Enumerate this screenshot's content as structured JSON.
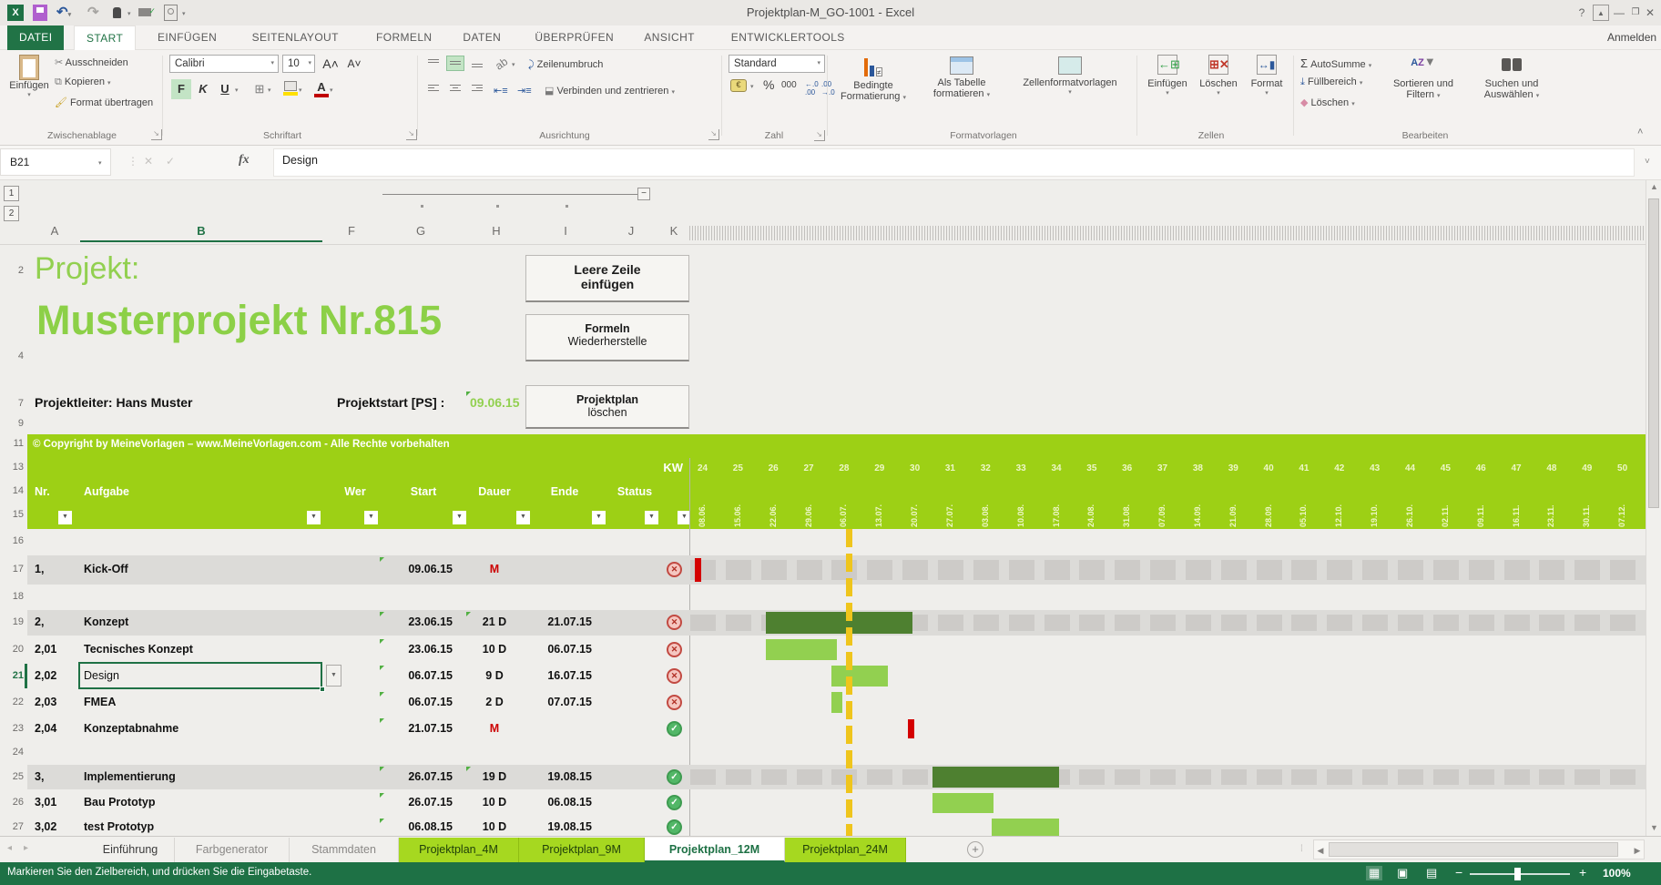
{
  "window": {
    "title": "Projektplan-M_GO-1001 - Excel",
    "signin": "Anmelden",
    "help": "?",
    "qat_icons": [
      "excel-logo",
      "save",
      "undo",
      "redo",
      "touch-mode",
      "print-preview",
      "preview-zoom"
    ]
  },
  "ribbon": {
    "tabs": [
      {
        "label": "DATEI",
        "style": "file"
      },
      {
        "label": "START",
        "style": "active"
      },
      {
        "label": "EINFÜGEN",
        "style": "plain"
      },
      {
        "label": "SEITENLAYOUT",
        "style": "plain"
      },
      {
        "label": "FORMELN",
        "style": "plain"
      },
      {
        "label": "DATEN",
        "style": "plain"
      },
      {
        "label": "ÜBERPRÜFEN",
        "style": "plain"
      },
      {
        "label": "ANSICHT",
        "style": "plain"
      },
      {
        "label": "ENTWICKLERTOOLS",
        "style": "plain"
      }
    ],
    "clipboard": {
      "label": "Zwischenablage",
      "paste": "Einfügen",
      "cut": "Ausschneiden",
      "copy": "Kopieren",
      "painter": "Format übertragen"
    },
    "font": {
      "label": "Schriftart",
      "family": "Calibri",
      "size": "10",
      "bold": "F",
      "italic": "K",
      "underline": "U"
    },
    "alignment": {
      "label": "Ausrichtung",
      "wrap": "Zeilenumbruch",
      "merge": "Verbinden und zentrieren"
    },
    "number": {
      "label": "Zahl",
      "format": "Standard",
      "percent": "%",
      "thousands": "000"
    },
    "styles": {
      "label": "Formatvorlagen",
      "cond1": "Bedingte",
      "cond2": "Formatierung",
      "tbl1": "Als Tabelle",
      "tbl2": "formatieren",
      "cellstyles": "Zellenformatvorlagen"
    },
    "cells": {
      "label": "Zellen",
      "insert": "Einfügen",
      "del": "Löschen",
      "format": "Format"
    },
    "editing": {
      "label": "Bearbeiten",
      "autosum": "AutoSumme",
      "fill": "Füllbereich",
      "clear": "Löschen",
      "sort1": "Sortieren und",
      "sort2": "Filtern",
      "find1": "Suchen und",
      "find2": "Auswählen"
    }
  },
  "formula_bar": {
    "cell_ref": "B21",
    "fx": "fx",
    "value": "Design"
  },
  "sheet": {
    "column_letters": [
      "A",
      "B",
      "F",
      "G",
      "H",
      "I",
      "J",
      "K"
    ],
    "selected_column": "B",
    "selected_row": "21",
    "upper_row_numbers": [
      "2",
      "4",
      "7",
      "9",
      "11",
      "13",
      "14",
      "15"
    ],
    "project_label": "Projekt:",
    "project_name": "Musterprojekt Nr.815",
    "leader": "Projektleiter: Hans Muster",
    "start_label": "Projektstart [PS] :",
    "start_value": "09.06.15",
    "macro_buttons": [
      {
        "line1": "Leere Zeile",
        "line2": "einfügen"
      },
      {
        "line1": "Formeln",
        "line2": "Wiederherstelle"
      },
      {
        "line1": "Projektplan",
        "line2": "löschen"
      }
    ],
    "copyright": "© Copyright by MeineVorlagen – www.MeineVorlagen.com - Alle Rechte vorbehalten",
    "table": {
      "kw_label": "KW",
      "headers": [
        "Nr.",
        "Aufgabe",
        "Wer",
        "Start",
        "Dauer",
        "Ende",
        "Status"
      ],
      "weeks": [
        {
          "kw": "24",
          "date": "08.06."
        },
        {
          "kw": "25",
          "date": "15.06."
        },
        {
          "kw": "26",
          "date": "22.06."
        },
        {
          "kw": "27",
          "date": "29.06."
        },
        {
          "kw": "28",
          "date": "06.07."
        },
        {
          "kw": "29",
          "date": "13.07."
        },
        {
          "kw": "30",
          "date": "20.07."
        },
        {
          "kw": "31",
          "date": "27.07."
        },
        {
          "kw": "32",
          "date": "03.08."
        },
        {
          "kw": "33",
          "date": "10.08."
        },
        {
          "kw": "34",
          "date": "17.08."
        },
        {
          "kw": "35",
          "date": "24.08."
        },
        {
          "kw": "36",
          "date": "31.08."
        },
        {
          "kw": "37",
          "date": "07.09."
        },
        {
          "kw": "38",
          "date": "14.09."
        },
        {
          "kw": "39",
          "date": "21.09."
        },
        {
          "kw": "40",
          "date": "28.09."
        },
        {
          "kw": "41",
          "date": "05.10."
        },
        {
          "kw": "42",
          "date": "12.10."
        },
        {
          "kw": "43",
          "date": "19.10."
        },
        {
          "kw": "44",
          "date": "26.10."
        },
        {
          "kw": "45",
          "date": "02.11."
        },
        {
          "kw": "46",
          "date": "09.11."
        },
        {
          "kw": "47",
          "date": "16.11."
        },
        {
          "kw": "48",
          "date": "23.11."
        },
        {
          "kw": "49",
          "date": "30.11."
        },
        {
          "kw": "50",
          "date": "07.12."
        }
      ],
      "today_week": 28.5,
      "rows": [
        {
          "row": "16",
          "blank": true
        },
        {
          "row": "17",
          "nr": "1,",
          "name": "Kick-Off",
          "start": "09.06.15",
          "dauer": "M",
          "milestone": true,
          "ende": "",
          "status": "red",
          "summary": true,
          "gantt": {
            "milestone_week": 24.15
          }
        },
        {
          "row": "18",
          "blank": true
        },
        {
          "row": "19",
          "nr": "2,",
          "name": "Konzept",
          "start": "23.06.15",
          "dauer": "21 D",
          "ende": "21.07.15",
          "status": "red",
          "summary": true,
          "comment_dauer": true,
          "gantt": {
            "from_week": 26.15,
            "to_week": 30.3,
            "dark": true
          }
        },
        {
          "row": "20",
          "nr": "2,01",
          "name": "Tecnisches Konzept",
          "start": "23.06.15",
          "dauer": "10 D",
          "ende": "06.07.15",
          "status": "red",
          "gantt": {
            "from_week": 26.15,
            "to_week": 28.16
          }
        },
        {
          "row": "21",
          "nr": "2,02",
          "name": "Design",
          "start": "06.07.15",
          "dauer": "9 D",
          "ende": "16.07.15",
          "status": "red",
          "selected": true,
          "gantt": {
            "from_week": 28.02,
            "to_week": 29.6
          }
        },
        {
          "row": "22",
          "nr": "2,03",
          "name": "FMEA",
          "start": "06.07.15",
          "dauer": "2 D",
          "ende": "07.07.15",
          "status": "red",
          "gantt": {
            "from_week": 28.02,
            "to_week": 28.32
          }
        },
        {
          "row": "23",
          "nr": "2,04",
          "name": "Konzeptabnahme",
          "start": "21.07.15",
          "dauer": "M",
          "milestone": true,
          "ende": "",
          "status": "green",
          "gantt": {
            "milestone_week": 30.18
          }
        },
        {
          "row": "24",
          "blank": true
        },
        {
          "row": "25",
          "nr": "3,",
          "name": "Implementierung",
          "start": "26.07.15",
          "dauer": "19 D",
          "ende": "19.08.15",
          "status": "green",
          "summary": true,
          "comment_dauer": true,
          "gantt": {
            "from_week": 30.88,
            "to_week": 34.45,
            "dark": true
          }
        },
        {
          "row": "26",
          "nr": "3,01",
          "name": "Bau Prototyp",
          "start": "26.07.15",
          "dauer": "10 D",
          "ende": "06.08.15",
          "status": "green",
          "gantt": {
            "from_week": 30.88,
            "to_week": 32.6
          }
        },
        {
          "row": "27",
          "nr": "3,02",
          "name": "test Prototyp",
          "start": "06.08.15",
          "dauer": "10 D",
          "ende": "19.08.15",
          "status": "green",
          "gantt": {
            "from_week": 32.55,
            "to_week": 34.45
          }
        }
      ]
    }
  },
  "sheet_tabs": [
    {
      "label": "Einführung",
      "style": "plain"
    },
    {
      "label": "Farbgenerator",
      "style": "dim"
    },
    {
      "label": "Stammdaten",
      "style": "dim"
    },
    {
      "label": "Projektplan_4M",
      "style": "green"
    },
    {
      "label": "Projektplan_9M",
      "style": "green"
    },
    {
      "label": "Projektplan_12M",
      "style": "active"
    },
    {
      "label": "Projektplan_24M",
      "style": "green"
    }
  ],
  "status_bar": {
    "message": "Markieren Sie den Zielbereich, und drücken Sie die Eingabetaste.",
    "zoom": "100%"
  },
  "colors": {
    "accent_green": "#217346",
    "band_green": "#9DD015",
    "light_green_bar": "#92D050",
    "dark_green_bar": "#4E8030",
    "tab_green": "#A6D820",
    "milestone_red": "#D40000",
    "today_line_yellow": "#EFC51C"
  }
}
